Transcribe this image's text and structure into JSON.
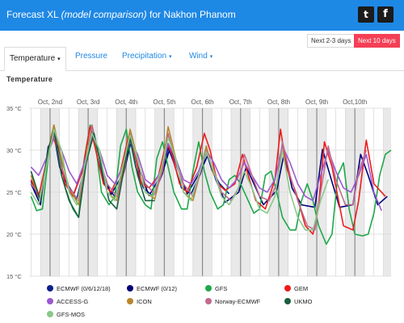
{
  "header": {
    "title_prefix": "Forecast XL",
    "title_italic": "(model comparison)",
    "title_suffix": "for Nakhon Phanom",
    "twitter_glyph": "t",
    "facebook_glyph": "f"
  },
  "range_buttons": [
    {
      "label": "Next 2-3 days",
      "active": false
    },
    {
      "label": "Next 10 days",
      "active": true
    }
  ],
  "tabs": [
    {
      "label": "Temperature",
      "caret": "▾",
      "active": true
    },
    {
      "label": "Pressure",
      "caret": "",
      "active": false
    },
    {
      "label": "Precipitation",
      "caret": "▾",
      "active": false
    },
    {
      "label": "Wind",
      "caret": "▾",
      "active": false
    }
  ],
  "section_title": "Temperature",
  "chart_data": {
    "type": "line",
    "title": "Temperature",
    "y_ticks": [
      "35 °C",
      "30 °C",
      "25 °C",
      "20 °C",
      "15 °C"
    ],
    "ylim": [
      15,
      35
    ],
    "y_unit": "°C",
    "x_labels": [
      "Oct, 2nd",
      "Oct, 3rd",
      "Oct, 4th",
      "Oct, 5th",
      "Oct, 6th",
      "Oct, 7th",
      "Oct, 8th",
      "Oct, 9th",
      "Oct,10th"
    ],
    "x_range_days": [
      1.45,
      10.95
    ],
    "grid": true,
    "legend_position": "bottom",
    "series": [
      {
        "name": "ECMWF (0/6/12/18)",
        "color": "#0b1f8f",
        "x": [
          1.5,
          1.75,
          1.95,
          2.1,
          2.25,
          2.45,
          2.7,
          2.95,
          3.1,
          3.25,
          3.45,
          3.7,
          3.95,
          4.1,
          4.25,
          4.45,
          4.7,
          4.95,
          5.1,
          5.25,
          5.45,
          5.7,
          5.95,
          6.1,
          6.25,
          6.45,
          6.7
        ],
        "y": [
          26.3,
          24,
          30,
          32,
          28,
          26,
          24.2,
          28.5,
          32.2,
          29,
          25.8,
          24.5,
          27.5,
          31.3,
          28,
          25.5,
          24.5,
          27.2,
          30.3,
          28.5,
          25.5,
          24.8,
          27.2,
          29.8,
          27.6,
          26,
          24.8
        ]
      },
      {
        "name": "ECMWF (0/12)",
        "color": "#00007a",
        "x": [
          1.5,
          1.75,
          1.95,
          2.15,
          2.35,
          2.6,
          2.95,
          3.15,
          3.35,
          3.6,
          3.95,
          4.15,
          4.35,
          4.6,
          4.95,
          5.15,
          5.35,
          5.6,
          5.95,
          6.15,
          6.35,
          6.6,
          6.95,
          7.15,
          7.35,
          7.6,
          7.95,
          8.15,
          8.35,
          8.6,
          8.95,
          9.15,
          9.35,
          9.6,
          9.95,
          10.15,
          10.35,
          10.6,
          10.85
        ],
        "y": [
          26,
          23.5,
          30.4,
          31.8,
          27,
          24.5,
          28.8,
          32,
          28,
          24.7,
          27.5,
          31.6,
          27.5,
          24.6,
          27.3,
          30.3,
          27.8,
          24.8,
          27.5,
          29.5,
          26.5,
          23.8,
          25,
          28,
          26,
          23.5,
          25.2,
          29.8,
          25.5,
          23.5,
          23.2,
          30.1,
          27,
          23.2,
          23.5,
          29.5,
          27,
          23.5,
          24.5
        ]
      },
      {
        "name": "GFS",
        "color": "#1ea84a",
        "x": [
          1.5,
          1.65,
          1.8,
          1.95,
          2.1,
          2.25,
          2.4,
          2.6,
          2.75,
          2.9,
          3.05,
          3.2,
          3.35,
          3.55,
          3.7,
          3.85,
          4,
          4.15,
          4.3,
          4.5,
          4.65,
          4.8,
          4.95,
          5.1,
          5.25,
          5.45,
          5.6,
          5.75,
          5.9,
          6.05,
          6.2,
          6.4,
          6.55,
          6.7,
          6.85,
          7,
          7.15,
          7.35,
          7.5,
          7.65,
          7.8,
          7.95,
          8.1,
          8.3,
          8.45,
          8.6,
          8.75,
          8.9,
          9.05,
          9.25,
          9.4,
          9.55,
          9.7,
          9.85,
          10,
          10.2,
          10.35,
          10.5,
          10.65,
          10.8,
          10.95
        ],
        "y": [
          24.5,
          22.8,
          23,
          29,
          33,
          30,
          25.5,
          23,
          22,
          29,
          33,
          30.5,
          25,
          23.5,
          24.5,
          30.5,
          32.5,
          28,
          25,
          23.5,
          23,
          29,
          31,
          28,
          25,
          23,
          23,
          27.5,
          31,
          27.5,
          25,
          23,
          23.5,
          26.5,
          27,
          26,
          24.5,
          22.5,
          23,
          27,
          27.5,
          25,
          22,
          20.5,
          20.5,
          24,
          26,
          24,
          21,
          18.8,
          20,
          27,
          28.5,
          23,
          20,
          19.8,
          20,
          22.5,
          27,
          29.5,
          30
        ]
      },
      {
        "name": "GEM",
        "color": "#ef1a1a",
        "x": [
          1.5,
          1.7,
          1.9,
          2.05,
          2.2,
          2.4,
          2.6,
          2.85,
          3.05,
          3.2,
          3.4,
          3.6,
          3.85,
          4.05,
          4.2,
          4.4,
          4.6,
          4.85,
          5.05,
          5.2,
          5.4,
          5.6,
          5.85,
          6.05,
          6.2,
          6.4,
          6.6,
          6.85,
          7.05,
          7.2,
          7.4,
          7.65,
          7.9,
          8.05,
          8.2,
          8.45,
          8.7,
          8.9,
          9.05,
          9.2,
          9.4,
          9.7,
          9.95,
          10.1,
          10.3,
          10.5,
          10.8
        ],
        "y": [
          26.5,
          24.5,
          28.5,
          32,
          30,
          26,
          24.5,
          27.5,
          32.8,
          30,
          26,
          25,
          27.5,
          31.5,
          30,
          26,
          25.5,
          27,
          31,
          29.5,
          26,
          25,
          28,
          32,
          30,
          26,
          25.2,
          26,
          29.5,
          27,
          24,
          23,
          26.5,
          32.5,
          28,
          25,
          21,
          20,
          23.5,
          31,
          28,
          21,
          20.5,
          24,
          31.2,
          26,
          24.5
        ]
      },
      {
        "name": "ACCESS-G",
        "color": "#9b59d0",
        "x": [
          1.5,
          1.7,
          1.9,
          2.1,
          2.3,
          2.5,
          2.7,
          2.9,
          3.1,
          3.3,
          3.5,
          3.7,
          3.9,
          4.1,
          4.3,
          4.5,
          4.7,
          4.9,
          5.1,
          5.3,
          5.5,
          5.7,
          5.9,
          6.1,
          6.3,
          6.5,
          6.7,
          6.9,
          7.1,
          7.3,
          7.5,
          7.7,
          7.9,
          8.1,
          8.3,
          8.5,
          8.7,
          8.9,
          9.1,
          9.3,
          9.5,
          9.7,
          9.9,
          10.1,
          10.3,
          10.5,
          10.7
        ],
        "y": [
          28,
          27,
          29,
          31.5,
          30,
          27.5,
          26,
          28.5,
          31.8,
          30,
          27,
          26,
          28,
          31,
          29.5,
          26.5,
          25.8,
          27.5,
          30.8,
          29,
          26.5,
          26,
          27.5,
          30,
          28.5,
          26.5,
          25.5,
          26.5,
          28.5,
          27,
          25.5,
          25,
          26.5,
          30.5,
          28.5,
          26,
          24.5,
          24,
          27,
          30,
          27.5,
          25.5,
          25,
          27,
          29.5,
          25,
          22.8
        ]
      },
      {
        "name": "ICON",
        "color": "#b8862b",
        "x": [
          1.5,
          1.75,
          1.95,
          2.1,
          2.3,
          2.5,
          2.75,
          2.95,
          3.1,
          3.3,
          3.5,
          3.75,
          3.95,
          4.1,
          4.3,
          4.5,
          4.75,
          4.95,
          5.1,
          5.3,
          5.5,
          5.75,
          5.95,
          6.1,
          6.3
        ],
        "y": [
          27,
          24,
          30,
          33,
          29,
          25.5,
          23.5,
          29,
          33,
          29,
          25,
          24,
          28.5,
          32.5,
          29,
          25,
          24.2,
          28,
          32.8,
          29,
          25,
          24,
          27.5,
          30.5,
          27
        ]
      },
      {
        "name": "Norway-ECMWF",
        "color": "#c06a8e",
        "x": [
          1.5,
          1.75,
          1.95,
          2.1,
          2.3,
          2.5,
          2.75,
          2.95,
          3.1,
          3.3,
          3.5,
          3.75,
          3.95,
          4.1,
          4.3,
          4.5,
          4.75,
          4.95,
          5.1,
          5.3,
          5.5,
          5.75,
          5.95,
          6.1,
          6.3,
          6.5,
          6.75,
          6.95,
          7.1,
          7.3,
          7.5,
          7.75,
          7.95,
          8.1,
          8.3,
          8.5,
          8.75,
          8.95,
          9.1,
          9.3,
          9.5,
          9.75,
          9.95,
          10.1,
          10.3
        ],
        "y": [
          26,
          24.5,
          29.5,
          32,
          28,
          25.5,
          24,
          28.5,
          33,
          29,
          26,
          24.5,
          27.5,
          32,
          28.5,
          26,
          24.8,
          27.5,
          32,
          28.5,
          26,
          24.5,
          27.5,
          30,
          27.5,
          25,
          24,
          25.5,
          29.5,
          27,
          24.5,
          24,
          26,
          31,
          27,
          24,
          21,
          20.5,
          25,
          30.5,
          26.5,
          23.5,
          23.5,
          27.5,
          30
        ]
      },
      {
        "name": "UKMO",
        "color": "#1a5e3e",
        "x": [
          1.5,
          1.75,
          1.95,
          2.1,
          2.3,
          2.5,
          2.75,
          2.95,
          3.15,
          3.35,
          3.55,
          3.75,
          3.95,
          4.1,
          4.3,
          4.5,
          4.75
        ],
        "y": [
          27.5,
          24,
          30,
          32.5,
          27,
          24,
          22,
          28.5,
          32,
          28,
          24,
          23,
          28,
          31.5,
          27,
          24,
          24
        ]
      },
      {
        "name": "GFS-MOS",
        "color": "#88c98a",
        "x": [
          1.5,
          1.7,
          1.9,
          2.1,
          2.3,
          2.5,
          2.7,
          2.9,
          3.1,
          3.3,
          3.5,
          3.7,
          3.9,
          4.1,
          4.3,
          4.5,
          4.7,
          4.9,
          5.1,
          5.3,
          5.5,
          5.7,
          5.9,
          6.1,
          6.3,
          6.5,
          6.7,
          6.9,
          7.1,
          7.3,
          7.5,
          7.7,
          7.9,
          8.1,
          8.3,
          8.5,
          8.7,
          8.9,
          9.1,
          9.3
        ],
        "y": [
          25,
          23.5,
          28,
          32.5,
          30,
          25,
          23.5,
          28,
          32,
          30,
          25,
          24,
          28,
          31.8,
          29,
          25,
          24.5,
          27.5,
          31.5,
          29,
          25,
          24,
          27,
          29.8,
          27.5,
          24.5,
          23.5,
          25,
          27.5,
          25.5,
          23,
          22.5,
          24.5,
          30,
          25,
          22,
          20.5,
          20.5,
          24,
          26.5
        ]
      }
    ]
  }
}
